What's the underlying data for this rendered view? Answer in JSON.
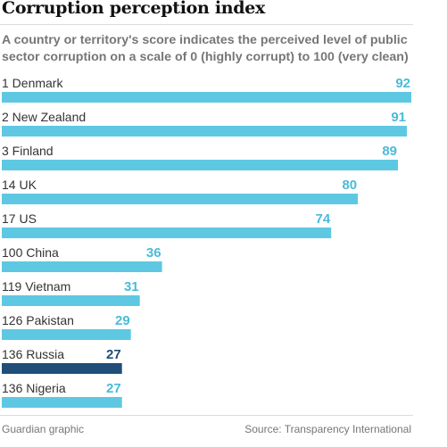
{
  "chart_data": {
    "type": "bar",
    "orientation": "horizontal",
    "title": "Corruption perception index",
    "subtitle": "A country or territory's score indicates the perceived level of public sector corruption on a scale of 0 (highly corrupt) to 100 (very clean)",
    "categories": [
      "1 Denmark",
      "2 New Zealand",
      "3 Finland",
      "14 UK",
      "17 US",
      "100 China",
      "119 Vietnam",
      "126 Pakistan",
      "136 Russia",
      "136 Nigeria"
    ],
    "values": [
      92,
      91,
      89,
      80,
      74,
      36,
      31,
      29,
      27,
      27
    ],
    "xlim": [
      0,
      92
    ],
    "highlight": "136 Russia",
    "colors": {
      "bar": "#5ec8e2",
      "label": "#4bbbd8",
      "highlight": "#1f4e79"
    }
  },
  "footer": {
    "credit": "Guardian graphic",
    "source": "Source: Transparency International"
  }
}
